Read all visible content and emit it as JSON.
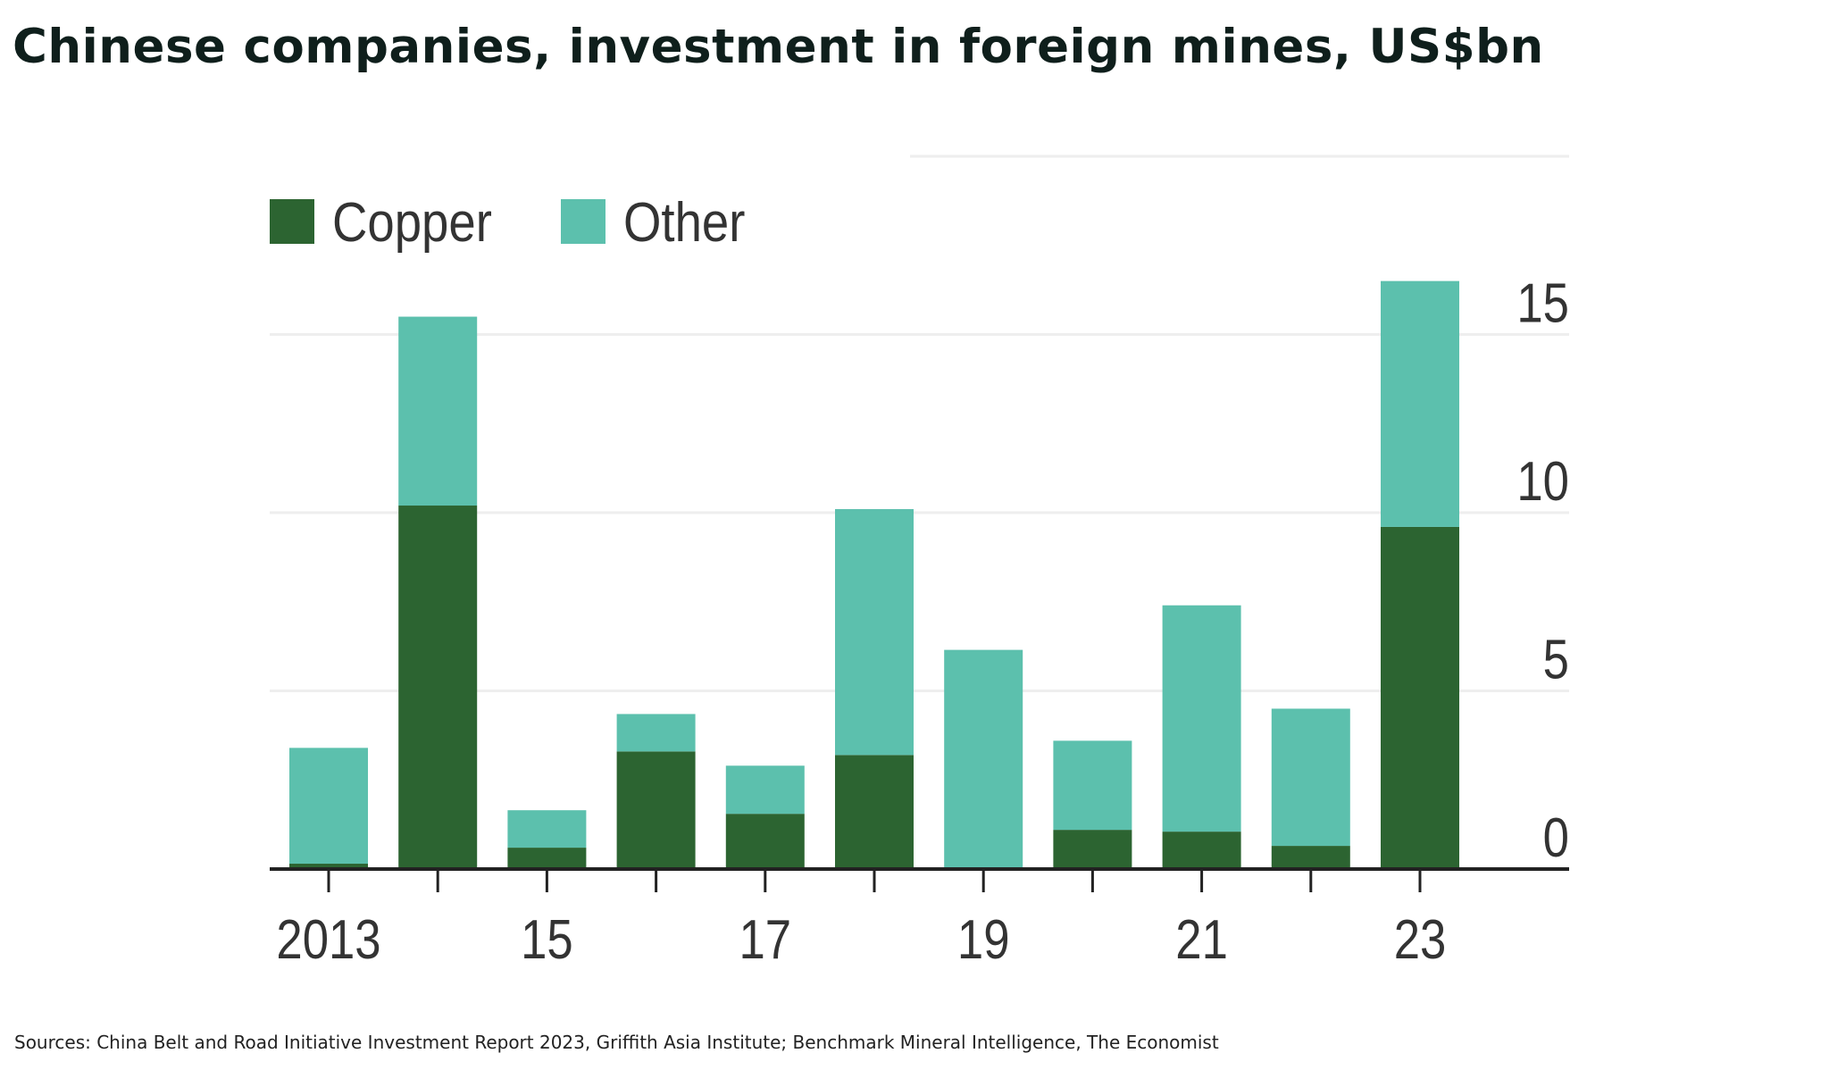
{
  "title": "Chinese companies, investment in foreign mines, US$bn",
  "source": "Sources: China Belt and Road Initiative Investment Report 2023, Griffith Asia Institute; Benchmark Mineral Intelligence, The Economist",
  "chart_data": {
    "type": "bar",
    "stacked": true,
    "title": "Chinese companies, investment in foreign mines, US$bn",
    "categories": [
      "2013",
      "2014",
      "2015",
      "2016",
      "2017",
      "2018",
      "2019",
      "2020",
      "2021",
      "2022",
      "2023"
    ],
    "x_tick_labels": {
      "2013": "2013",
      "2015": "15",
      "2017": "17",
      "2019": "19",
      "2021": "21",
      "2023": "23"
    },
    "series": [
      {
        "name": "Copper",
        "color": "#2c6431",
        "values": [
          0.15,
          10.2,
          0.6,
          3.3,
          1.55,
          3.2,
          0.05,
          1.1,
          1.05,
          0.65,
          9.6
        ]
      },
      {
        "name": "Other",
        "color": "#5cc0ad",
        "values": [
          3.25,
          5.3,
          1.05,
          1.05,
          1.35,
          6.9,
          6.1,
          2.5,
          6.35,
          3.85,
          6.9
        ]
      }
    ],
    "ylim": [
      0,
      20
    ],
    "y_ticks": [
      0,
      5,
      10,
      15
    ],
    "y_axis_side": "right",
    "grid": true,
    "legend_position": "top-left"
  }
}
